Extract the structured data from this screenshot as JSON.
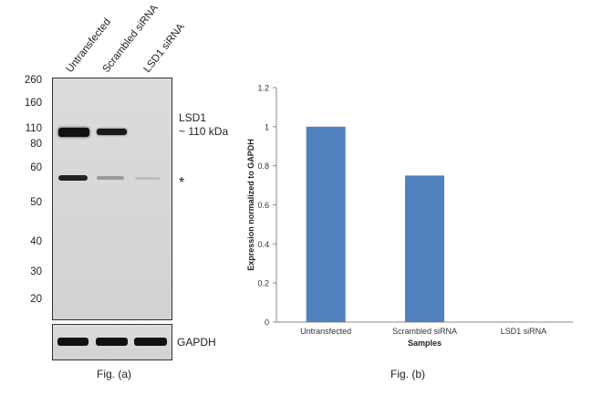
{
  "fig_a": {
    "lanes": [
      "Untransfected",
      "Scrambled siRNA",
      "LSD1 siRNA"
    ],
    "markers": [
      "260",
      "160",
      "110",
      "80",
      "60",
      "50",
      "40",
      "30",
      "20"
    ],
    "band_label_line1": "LSD1",
    "band_label_line2": "~ 110 kDa",
    "asterisk": "*",
    "loading_control": "GAPDH",
    "caption": "Fig. (a)"
  },
  "fig_b": {
    "caption": "Fig. (b)"
  },
  "chart_data": {
    "type": "bar",
    "categories": [
      "Untransfected",
      "Scrambled siRNA",
      "LSD1 siRNA"
    ],
    "values": [
      1.0,
      0.75,
      0
    ],
    "title": "",
    "xlabel": "Samples",
    "ylabel": "Expression normalized to GAPDH",
    "ylim": [
      0,
      1.2
    ],
    "yticks": [
      "0",
      "0.2",
      "0.4",
      "0.6",
      "0.8",
      "1",
      "1.2"
    ],
    "bar_color": "#4f81bd",
    "grid": false
  }
}
